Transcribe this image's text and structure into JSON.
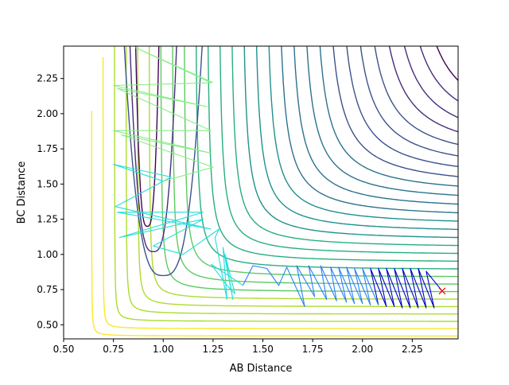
{
  "chart_data": {
    "type": "contour",
    "xlabel": "AB Distance",
    "ylabel": "BC Distance",
    "xlim": [
      0.5,
      2.48
    ],
    "ylim": [
      0.4,
      2.48
    ],
    "xticks": [
      "0.50",
      "0.75",
      "1.00",
      "1.25",
      "1.50",
      "1.75",
      "2.00",
      "2.25"
    ],
    "yticks": [
      "0.50",
      "0.75",
      "1.00",
      "1.25",
      "1.50",
      "1.75",
      "2.00",
      "2.25"
    ],
    "xtick_values": [
      0.5,
      0.75,
      1.0,
      1.25,
      1.5,
      1.75,
      2.0,
      2.25
    ],
    "ytick_values": [
      0.5,
      0.75,
      1.0,
      1.25,
      1.5,
      1.75,
      2.0,
      2.25
    ],
    "colormap": "viridis",
    "contour_colors": [
      "#440154",
      "#472d7b",
      "#3b528b",
      "#2c728e",
      "#21918c",
      "#28ae80",
      "#5ec962",
      "#addc30",
      "#fde725"
    ],
    "trajectories": [
      {
        "color": "#0000cc",
        "points": [
          [
            2.4,
            0.74
          ],
          [
            2.32,
            0.88
          ],
          [
            2.36,
            0.62
          ],
          [
            2.28,
            0.9
          ],
          [
            2.32,
            0.62
          ],
          [
            2.24,
            0.9
          ],
          [
            2.28,
            0.62
          ],
          [
            2.2,
            0.9
          ],
          [
            2.24,
            0.62
          ],
          [
            2.16,
            0.9
          ],
          [
            2.2,
            0.62
          ],
          [
            2.12,
            0.9
          ],
          [
            2.16,
            0.63
          ],
          [
            2.08,
            0.9
          ],
          [
            2.12,
            0.63
          ],
          [
            2.04,
            0.9
          ],
          [
            2.08,
            0.64
          ]
        ]
      },
      {
        "color": "#2a7fff",
        "points": [
          [
            2.08,
            0.64
          ],
          [
            2.0,
            0.9
          ],
          [
            2.04,
            0.64
          ],
          [
            1.96,
            0.9
          ],
          [
            2.0,
            0.65
          ],
          [
            1.92,
            0.91
          ],
          [
            1.96,
            0.65
          ],
          [
            1.88,
            0.91
          ],
          [
            1.92,
            0.66
          ],
          [
            1.84,
            0.91
          ],
          [
            1.87,
            0.67
          ],
          [
            1.79,
            0.92
          ],
          [
            1.82,
            0.68
          ],
          [
            1.73,
            0.92
          ],
          [
            1.76,
            0.7
          ],
          [
            1.67,
            0.92
          ],
          [
            1.71,
            0.63
          ],
          [
            1.62,
            0.91
          ],
          [
            1.58,
            0.78
          ],
          [
            1.52,
            0.9
          ],
          [
            1.45,
            0.92
          ],
          [
            1.4,
            0.78
          ]
        ]
      },
      {
        "color": "#22dddd",
        "points": [
          [
            1.4,
            0.78
          ],
          [
            1.36,
            0.82
          ],
          [
            1.24,
            0.93
          ],
          [
            1.32,
            0.78
          ],
          [
            1.36,
            0.72
          ],
          [
            1.31,
            1.0
          ],
          [
            1.35,
            0.68
          ],
          [
            1.3,
            1.05
          ],
          [
            1.32,
            0.68
          ],
          [
            1.26,
            1.12
          ],
          [
            1.28,
            1.18
          ],
          [
            1.1,
            1.0
          ],
          [
            0.95,
            1.06
          ],
          [
            1.2,
            1.25
          ],
          [
            0.78,
            1.12
          ],
          [
            1.2,
            1.3
          ],
          [
            0.77,
            1.3
          ],
          [
            1.24,
            1.18
          ],
          [
            0.76,
            1.34
          ],
          [
            1.04,
            1.55
          ],
          [
            0.75,
            1.64
          ],
          [
            1.0,
            1.52
          ]
        ]
      },
      {
        "color": "#88ee88",
        "points": [
          [
            1.0,
            1.52
          ],
          [
            1.25,
            1.62
          ],
          [
            0.79,
            1.85
          ],
          [
            1.24,
            1.72
          ],
          [
            0.75,
            1.88
          ],
          [
            1.24,
            1.88
          ],
          [
            0.77,
            2.18
          ],
          [
            1.22,
            2.05
          ],
          [
            0.75,
            2.2
          ],
          [
            1.24,
            2.22
          ],
          [
            0.86,
            2.47
          ],
          [
            1.25,
            2.22
          ]
        ]
      }
    ],
    "end_marker": {
      "x": 2.4,
      "y": 0.74,
      "color": "#ff0000"
    }
  }
}
